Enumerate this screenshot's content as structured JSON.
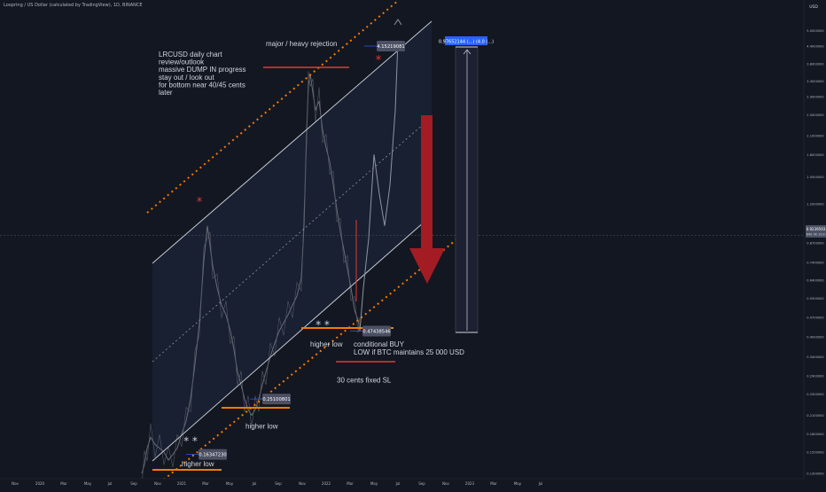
{
  "header": {
    "title": "Loopring / US Dollar (calculated by TradingView), 1D, BINANCE"
  },
  "axis": {
    "currency": "USD"
  },
  "colors": {
    "background": "#131722",
    "price": "#6a6d78",
    "channel": "#c7c9d1",
    "orange_support": "#f57c00",
    "red_line": "#e53935",
    "big_arrow": "#a31c24",
    "label_bg": "#4b5063",
    "target_label": "#2962ff"
  },
  "chart_data": {
    "type": "line",
    "title": "",
    "y_scale": "log",
    "ylim": [
      0.13,
      5.6
    ],
    "y_ticks": [
      "5.0000000",
      "4.4000000",
      "3.8000000",
      "3.3000000",
      "2.9000000",
      "2.5000000",
      "2.1000000",
      "1.8000000",
      "1.5000000",
      "1.2000000",
      "1.0000000",
      "0.8700000",
      "0.7400000",
      "0.6400000",
      "0.5500000",
      "0.4700000",
      "0.4000000",
      "0.3400000",
      "0.2900000",
      "0.2500000",
      "0.2100000",
      "0.1800000",
      "0.1550000",
      "0.1300000"
    ],
    "y_tick_values": [
      5.0,
      4.4,
      3.8,
      3.3,
      2.9,
      2.5,
      2.1,
      1.8,
      1.5,
      1.2,
      1.0,
      0.87,
      0.74,
      0.64,
      0.55,
      0.47,
      0.4,
      0.34,
      0.29,
      0.25,
      0.21,
      0.18,
      0.155,
      0.13
    ],
    "x_ticks": [
      "Nov",
      "2020",
      "Mar",
      "May",
      "Jul",
      "Sep",
      "Nov",
      "2021",
      "Mar",
      "May",
      "Jul",
      "Sep",
      "Nov",
      "2022",
      "Mar",
      "May",
      "Jul",
      "Sep",
      "Nov",
      "2023",
      "Mar",
      "May",
      "Jul"
    ],
    "x_tick_positions": [
      17,
      45,
      72,
      99,
      124,
      151,
      178,
      205,
      232,
      259,
      287,
      314,
      341,
      368,
      395,
      422,
      449,
      476,
      503,
      530,
      557,
      584,
      610
    ],
    "current_price": "0.9239593",
    "current_time": "84d 9h 31m",
    "price_path": [
      [
        160,
        0.13
      ],
      [
        163,
        0.14
      ],
      [
        166,
        0.16
      ],
      [
        170,
        0.175
      ],
      [
        175,
        0.165
      ],
      [
        180,
        0.16
      ],
      [
        185,
        0.155
      ],
      [
        190,
        0.145
      ],
      [
        195,
        0.152
      ],
      [
        200,
        0.16
      ],
      [
        205,
        0.18
      ],
      [
        210,
        0.2
      ],
      [
        215,
        0.24
      ],
      [
        220,
        0.32
      ],
      [
        225,
        0.45
      ],
      [
        230,
        0.75
      ],
      [
        234,
        1.0
      ],
      [
        237,
        0.85
      ],
      [
        240,
        0.72
      ],
      [
        245,
        0.6
      ],
      [
        250,
        0.52
      ],
      [
        255,
        0.48
      ],
      [
        260,
        0.42
      ],
      [
        264,
        0.36
      ],
      [
        268,
        0.3
      ],
      [
        272,
        0.27
      ],
      [
        276,
        0.24
      ],
      [
        280,
        0.22
      ],
      [
        284,
        0.21
      ],
      [
        288,
        0.22
      ],
      [
        292,
        0.24
      ],
      [
        296,
        0.27
      ],
      [
        300,
        0.3
      ],
      [
        305,
        0.34
      ],
      [
        310,
        0.38
      ],
      [
        315,
        0.42
      ],
      [
        320,
        0.45
      ],
      [
        325,
        0.48
      ],
      [
        330,
        0.52
      ],
      [
        335,
        0.56
      ],
      [
        340,
        0.65
      ],
      [
        343,
        1.0
      ],
      [
        346,
        2.2
      ],
      [
        348,
        3.2
      ],
      [
        350,
        3.5
      ],
      [
        353,
        3.0
      ],
      [
        356,
        2.6
      ],
      [
        360,
        2.8
      ],
      [
        364,
        2.2
      ],
      [
        368,
        1.9
      ],
      [
        372,
        1.7
      ],
      [
        376,
        1.4
      ],
      [
        380,
        1.15
      ],
      [
        384,
        0.95
      ],
      [
        388,
        0.82
      ],
      [
        392,
        0.7
      ],
      [
        396,
        0.6
      ],
      [
        400,
        0.5
      ],
      [
        404,
        0.46
      ],
      [
        406,
        0.42
      ]
    ],
    "projection_path": [
      [
        406,
        0.42
      ],
      [
        410,
        0.6
      ],
      [
        416,
        0.9
      ],
      [
        422,
        1.8
      ],
      [
        428,
        1.3
      ],
      [
        434,
        1.0
      ],
      [
        440,
        1.4
      ],
      [
        446,
        2.6
      ],
      [
        449,
        4.6
      ]
    ],
    "labels": [
      {
        "text": "0.16347230",
        "x": 224,
        "y": 0.152
      },
      {
        "text": "0.25100801",
        "x": 296,
        "y": 0.24
      },
      {
        "text": "0.47438546",
        "x": 409,
        "y": 0.42
      },
      {
        "text": "4.15219081",
        "x": 425,
        "y": 4.4
      }
    ],
    "target_label": {
      "text": "0.97652144 (...) (4.0 (...)",
      "x": 525,
      "y": 4.4
    },
    "annotations": [
      {
        "text": "major / heavy rejection",
        "x": 300,
        "y": 4.4
      },
      {
        "text": "higher low",
        "x": 350,
        "y": 0.37
      },
      {
        "text": "higher low",
        "x": 277,
        "y": 0.188
      },
      {
        "text": "higher low",
        "x": 205,
        "y": 0.138
      },
      {
        "text": "conditional BUY",
        "x": 399,
        "y": 0.37
      },
      {
        "text": "LOW if BTC maintains 25 000 USD",
        "x": 399,
        "y": 0.346
      },
      {
        "text": "30 cents fixed SL",
        "x": 380,
        "y": 0.275
      }
    ],
    "notes": [
      "LRCUSD daily chart",
      "review/outlook",
      "massive DUMP IN progress",
      "stay out / look out",
      "for bottom near 40/45 cents",
      "later"
    ],
    "markers": [
      {
        "text": "*",
        "x": 225,
        "y": 1.18
      },
      {
        "text": "*",
        "x": 427,
        "y": 3.8
      },
      {
        "text": "* *",
        "x": 364,
        "y": 0.43
      },
      {
        "text": "* *",
        "x": 215,
        "y": 0.165
      }
    ]
  }
}
